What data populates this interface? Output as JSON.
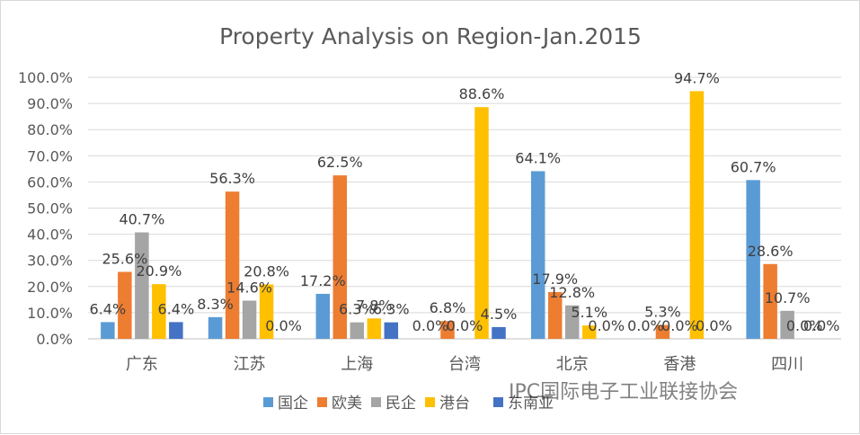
{
  "chart_data": {
    "type": "bar",
    "title": "Property Analysis on Region-Jan.2015",
    "categories": [
      "广东",
      "江苏",
      "上海",
      "台湾",
      "北京",
      "香港",
      "四川"
    ],
    "series": [
      {
        "name": "国企",
        "color": "#5b9bd5",
        "values": [
          6.4,
          8.3,
          17.2,
          0.0,
          64.1,
          0.0,
          60.7
        ]
      },
      {
        "name": "欧美",
        "color": "#ed7d31",
        "values": [
          25.6,
          56.3,
          62.5,
          6.8,
          17.9,
          5.3,
          28.6
        ]
      },
      {
        "name": "民企",
        "color": "#a5a5a5",
        "values": [
          40.7,
          14.6,
          6.3,
          0.0,
          12.8,
          0.0,
          10.7
        ]
      },
      {
        "name": "港台",
        "color": "#ffc000",
        "values": [
          20.9,
          20.8,
          7.8,
          88.6,
          5.1,
          94.7,
          0.0
        ]
      },
      {
        "name": "东南亚",
        "color": "#4472c4",
        "values": [
          6.4,
          0.0,
          6.3,
          4.5,
          0.0,
          0.0,
          0.0
        ]
      }
    ],
    "ylim": [
      0,
      100
    ],
    "yticks": [
      0,
      10,
      20,
      30,
      40,
      50,
      60,
      70,
      80,
      90,
      100
    ],
    "ytick_labels": [
      "0.0%",
      "10.0%",
      "20.0%",
      "30.0%",
      "40.0%",
      "50.0%",
      "60.0%",
      "70.0%",
      "80.0%",
      "90.0%",
      "100.0%"
    ],
    "value_suffix": "%",
    "grid": true,
    "legend_position": "bottom",
    "xlabel": "",
    "ylabel": ""
  },
  "watermark": "IPC国际电子工业联接协会"
}
